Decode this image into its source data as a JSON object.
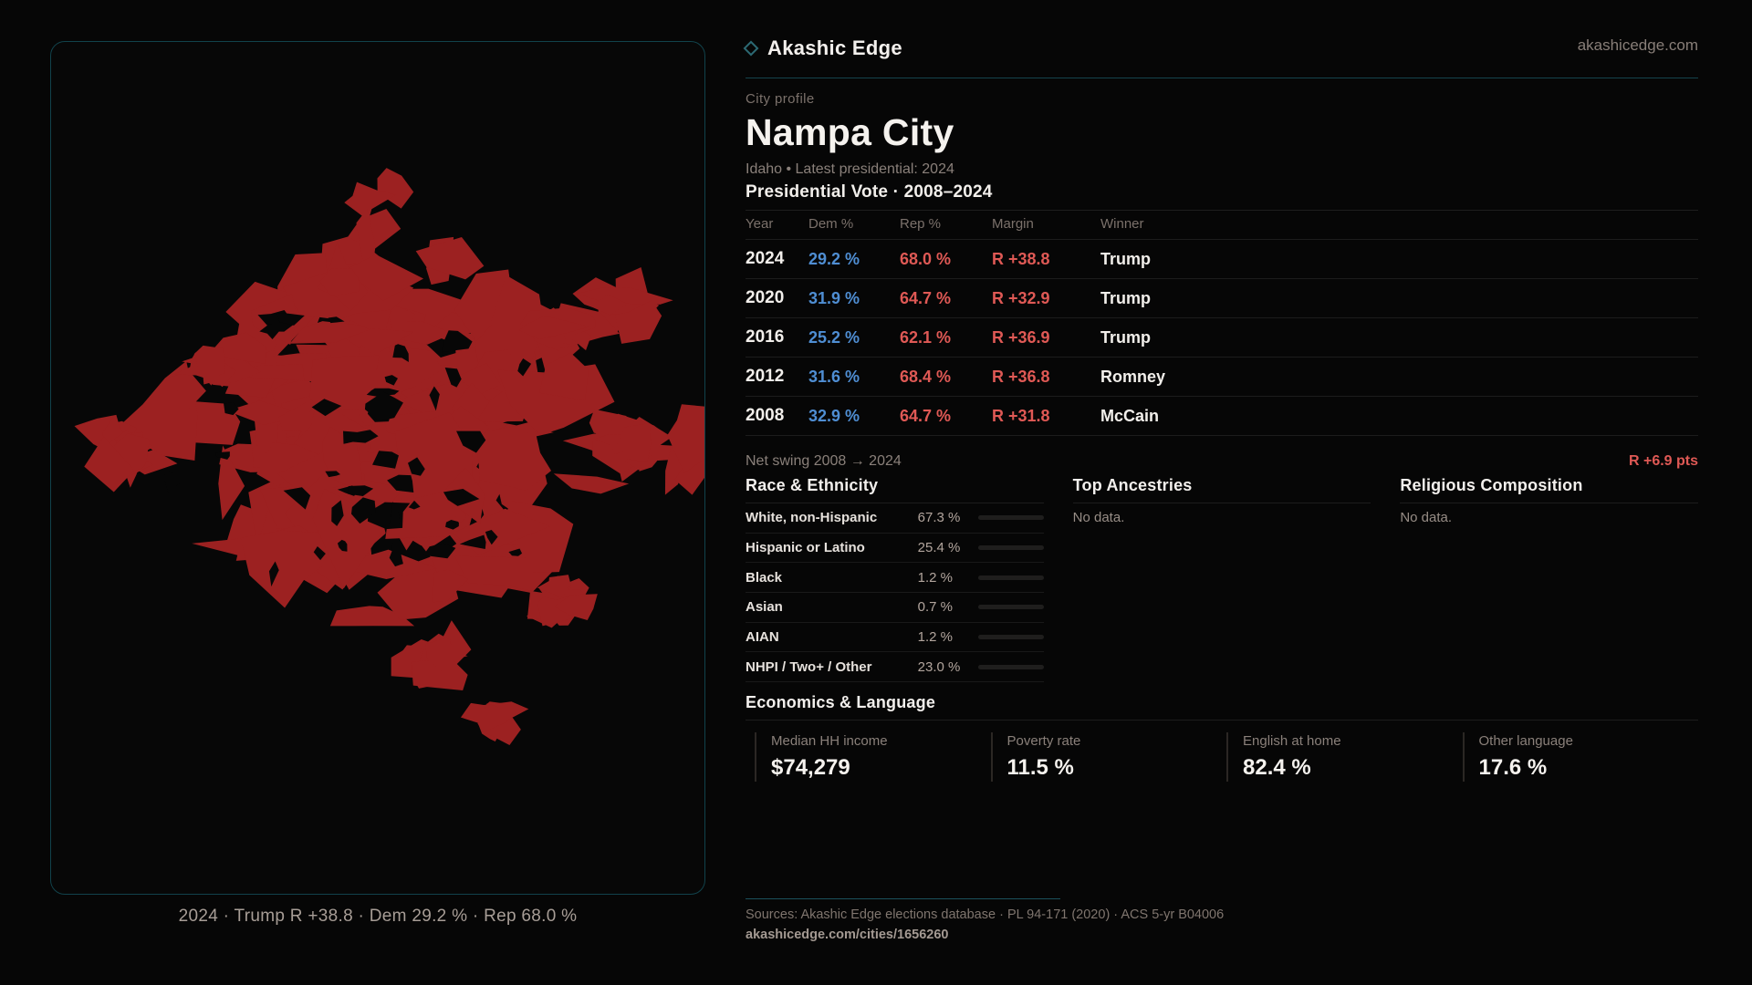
{
  "brand": {
    "name": "Akashic Edge",
    "domain": "akashicedge.com"
  },
  "profile": {
    "kicker": "City profile",
    "title": "Nampa City",
    "subtitle": "Idaho • Latest presidential: 2024"
  },
  "map": {
    "caption": "2024 · Trump R +38.8 · Dem 29.2 % · Rep 68.0 %"
  },
  "election": {
    "title": "Presidential Vote · 2008–2024",
    "columns": {
      "year": "Year",
      "dem": "Dem %",
      "rep": "Rep %",
      "margin": "Margin",
      "winner": "Winner"
    },
    "rows": [
      {
        "year": "2024",
        "dem": "29.2 %",
        "rep": "68.0 %",
        "margin": "R +38.8",
        "winner": "Trump"
      },
      {
        "year": "2020",
        "dem": "31.9 %",
        "rep": "64.7 %",
        "margin": "R +32.9",
        "winner": "Trump"
      },
      {
        "year": "2016",
        "dem": "25.2 %",
        "rep": "62.1 %",
        "margin": "R +36.9",
        "winner": "Trump"
      },
      {
        "year": "2012",
        "dem": "31.6 %",
        "rep": "68.4 %",
        "margin": "R +36.8",
        "winner": "Romney"
      },
      {
        "year": "2008",
        "dem": "32.9 %",
        "rep": "64.7 %",
        "margin": "R +31.8",
        "winner": "McCain"
      }
    ],
    "net_swing": {
      "label": "Net swing 2008 → 2024",
      "value": "R +6.9 pts"
    }
  },
  "race": {
    "title": "Race & Ethnicity",
    "rows": [
      {
        "label": "White, non-Hispanic",
        "value": "67.3 %",
        "pct": 67.3
      },
      {
        "label": "Hispanic or Latino",
        "value": "25.4 %",
        "pct": 25.4
      },
      {
        "label": "Black",
        "value": "1.2 %",
        "pct": 1.2
      },
      {
        "label": "Asian",
        "value": "0.7 %",
        "pct": 0.7
      },
      {
        "label": "AIAN",
        "value": "1.2 %",
        "pct": 1.2
      },
      {
        "label": "NHPI / Two+ / Other",
        "value": "23.0 %",
        "pct": 23.0
      }
    ]
  },
  "ancestries": {
    "title": "Top Ancestries",
    "empty": "No data."
  },
  "religion": {
    "title": "Religious Composition",
    "empty": "No data."
  },
  "economics": {
    "title": "Economics & Language",
    "stats": [
      {
        "label": "Median HH income",
        "value": "$74,279"
      },
      {
        "label": "Poverty rate",
        "value": "11.5 %"
      },
      {
        "label": "English at home",
        "value": "82.4 %"
      },
      {
        "label": "Other language",
        "value": "17.6 %"
      }
    ]
  },
  "footer": {
    "sources": "Sources: Akashic Edge elections database · PL 94-171 (2020) · ACS 5-yr B04006",
    "permalink": "akashicedge.com/cities/1656260"
  },
  "colors": {
    "map_fill": "#9c2121",
    "map_bg": "#070707",
    "dem_blue": "#4f8ed3",
    "rep_red": "#df5955",
    "accent_teal": "#15434c",
    "bar_fill": "#c7c2bd"
  }
}
